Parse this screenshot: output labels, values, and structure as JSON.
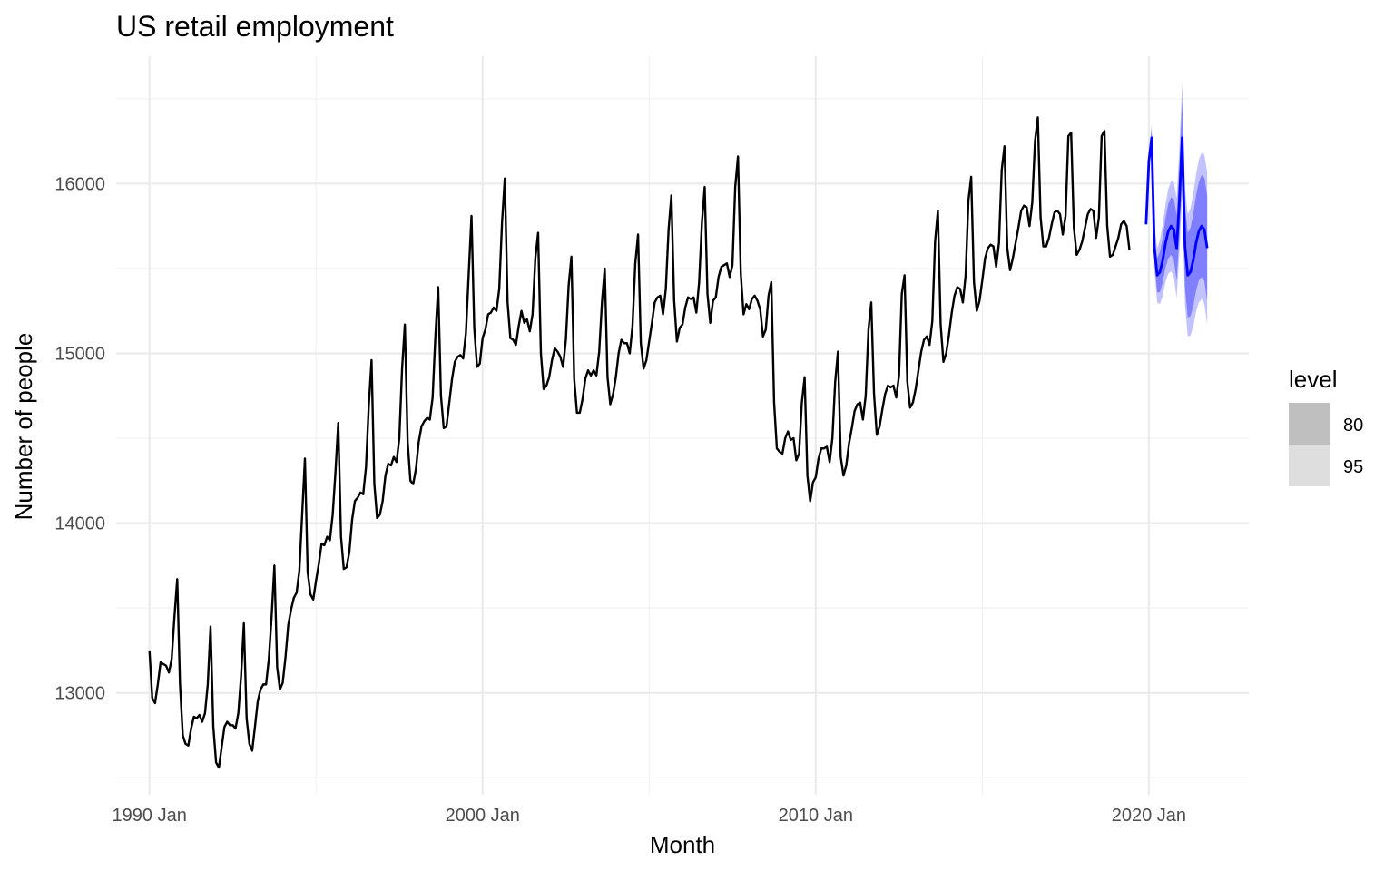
{
  "chart_data": {
    "type": "line",
    "title": "US retail employment",
    "xlabel": "Month",
    "ylabel": "Number of people",
    "x_unit": "month",
    "x_start": "1990 Jan",
    "xlim": [
      "1989 Jan",
      "2023 Jan"
    ],
    "ylim": [
      12400,
      16750
    ],
    "x_ticks": [
      {
        "date": "1990 Jan",
        "label": "1990 Jan"
      },
      {
        "date": "2000 Jan",
        "label": "2000 Jan"
      },
      {
        "date": "2010 Jan",
        "label": "2010 Jan"
      },
      {
        "date": "2020 Jan",
        "label": "2020 Jan"
      }
    ],
    "x_minor_ticks": [
      "1995 Jan",
      "2005 Jan",
      "2015 Jan"
    ],
    "y_ticks": [
      13000,
      14000,
      15000,
      16000
    ],
    "y_minor_ticks": [
      12500,
      13500,
      14500,
      15500,
      16500
    ],
    "grid": true,
    "legend": {
      "title": "level",
      "position": "right",
      "entries": [
        {
          "label": "80",
          "color": "#bfbfbf"
        },
        {
          "label": "95",
          "color": "#dedede"
        }
      ]
    },
    "series": [
      {
        "role": "observed",
        "color": "#000000",
        "start": "1990 Jan",
        "values": [
          13250,
          12970,
          12940,
          13050,
          13180,
          13170,
          13160,
          13120,
          13200,
          13450,
          13670,
          13050,
          12750,
          12700,
          12690,
          12790,
          12860,
          12850,
          12870,
          12830,
          12880,
          13050,
          13390,
          12800,
          12590,
          12560,
          12680,
          12800,
          12830,
          12810,
          12810,
          12790,
          12880,
          13100,
          13410,
          12850,
          12700,
          12660,
          12800,
          12950,
          13020,
          13050,
          13050,
          13200,
          13450,
          13750,
          13150,
          13020,
          13060,
          13210,
          13400,
          13490,
          13560,
          13590,
          13720,
          14050,
          14380,
          13710,
          13580,
          13550,
          13660,
          13760,
          13880,
          13870,
          13920,
          13900,
          14050,
          14300,
          14590,
          13920,
          13730,
          13740,
          13830,
          14020,
          14130,
          14150,
          14180,
          14170,
          14330,
          14690,
          14960,
          14230,
          14030,
          14050,
          14130,
          14280,
          14350,
          14340,
          14390,
          14360,
          14500,
          14910,
          15170,
          14480,
          14250,
          14230,
          14320,
          14480,
          14570,
          14600,
          14620,
          14610,
          14740,
          15100,
          15390,
          14750,
          14560,
          14570,
          14710,
          14850,
          14950,
          14980,
          14990,
          14970,
          15120,
          15470,
          15810,
          15150,
          14920,
          14940,
          15090,
          15140,
          15230,
          15240,
          15270,
          15250,
          15380,
          15770,
          16030,
          15300,
          15090,
          15080,
          15050,
          15160,
          15250,
          15180,
          15200,
          15130,
          15230,
          15560,
          15710,
          15000,
          14790,
          14810,
          14860,
          14960,
          15030,
          15010,
          14980,
          14920,
          15080,
          15400,
          15570,
          14850,
          14650,
          14650,
          14730,
          14850,
          14900,
          14870,
          14900,
          14870,
          15010,
          15300,
          15500,
          14860,
          14700,
          14760,
          14860,
          15000,
          15080,
          15060,
          15060,
          15000,
          15160,
          15530,
          15700,
          15060,
          14910,
          14960,
          15070,
          15180,
          15300,
          15330,
          15340,
          15230,
          15380,
          15730,
          15930,
          15310,
          15070,
          15150,
          15170,
          15270,
          15330,
          15320,
          15330,
          15240,
          15420,
          15770,
          15980,
          15350,
          15180,
          15310,
          15330,
          15450,
          15510,
          15520,
          15530,
          15450,
          15520,
          15980,
          16160,
          15470,
          15230,
          15290,
          15260,
          15320,
          15340,
          15310,
          15260,
          15100,
          15140,
          15340,
          15420,
          14710,
          14440,
          14420,
          14410,
          14500,
          14540,
          14490,
          14500,
          14370,
          14410,
          14710,
          14860,
          14280,
          14130,
          14240,
          14270,
          14380,
          14440,
          14440,
          14450,
          14360,
          14500,
          14830,
          15010,
          14390,
          14280,
          14340,
          14470,
          14560,
          14660,
          14700,
          14710,
          14610,
          14750,
          15140,
          15300,
          14760,
          14520,
          14570,
          14670,
          14760,
          14810,
          14800,
          14810,
          14740,
          14870,
          15350,
          15460,
          14830,
          14680,
          14710,
          14790,
          14900,
          15010,
          15080,
          15100,
          15050,
          15190,
          15660,
          15840,
          15170,
          14950,
          15000,
          15110,
          15240,
          15340,
          15390,
          15380,
          15300,
          15460,
          15900,
          16040,
          15420,
          15250,
          15310,
          15430,
          15560,
          15620,
          15640,
          15630,
          15510,
          15650,
          16080,
          16220,
          15620,
          15490,
          15560,
          15650,
          15740,
          15840,
          15870,
          15860,
          15750,
          15890,
          16250,
          16390,
          15800,
          15630,
          15630,
          15680,
          15760,
          15830,
          15840,
          15820,
          15700,
          15810,
          16280,
          16300,
          15740,
          15580,
          15610,
          15660,
          15740,
          15820,
          15850,
          15840,
          15680,
          15800,
          16280,
          16310,
          15750,
          15570,
          15580,
          15630,
          15680,
          15760,
          15780,
          15750,
          15610
        ]
      },
      {
        "role": "forecast",
        "color": "#0000ff",
        "start": "2019 Dec",
        "values": [
          15760,
          16130,
          16270,
          15620,
          15460,
          15480,
          15550,
          15650,
          15720,
          15750,
          15730,
          15620,
          15900,
          16270,
          15630,
          15460,
          15480,
          15550,
          15650,
          15720,
          15750,
          15730,
          15620
        ],
        "pi80_half": [
          0,
          20,
          50,
          80,
          100,
          120,
          130,
          145,
          160,
          170,
          180,
          190,
          210,
          225,
          240,
          250,
          260,
          270,
          280,
          290,
          300,
          305,
          310
        ],
        "pi95_half": [
          0,
          30,
          80,
          130,
          160,
          190,
          210,
          230,
          250,
          265,
          280,
          295,
          310,
          330,
          345,
          360,
          375,
          390,
          405,
          420,
          430,
          440,
          450
        ]
      }
    ]
  },
  "colors": {
    "background": "#ffffff",
    "grid_major": "#ebebeb",
    "grid_minor": "#f2f2f2",
    "observed": "#000000",
    "forecast": "#0000ff",
    "band80": "#7f7fff",
    "band95": "#c2c2ff"
  }
}
